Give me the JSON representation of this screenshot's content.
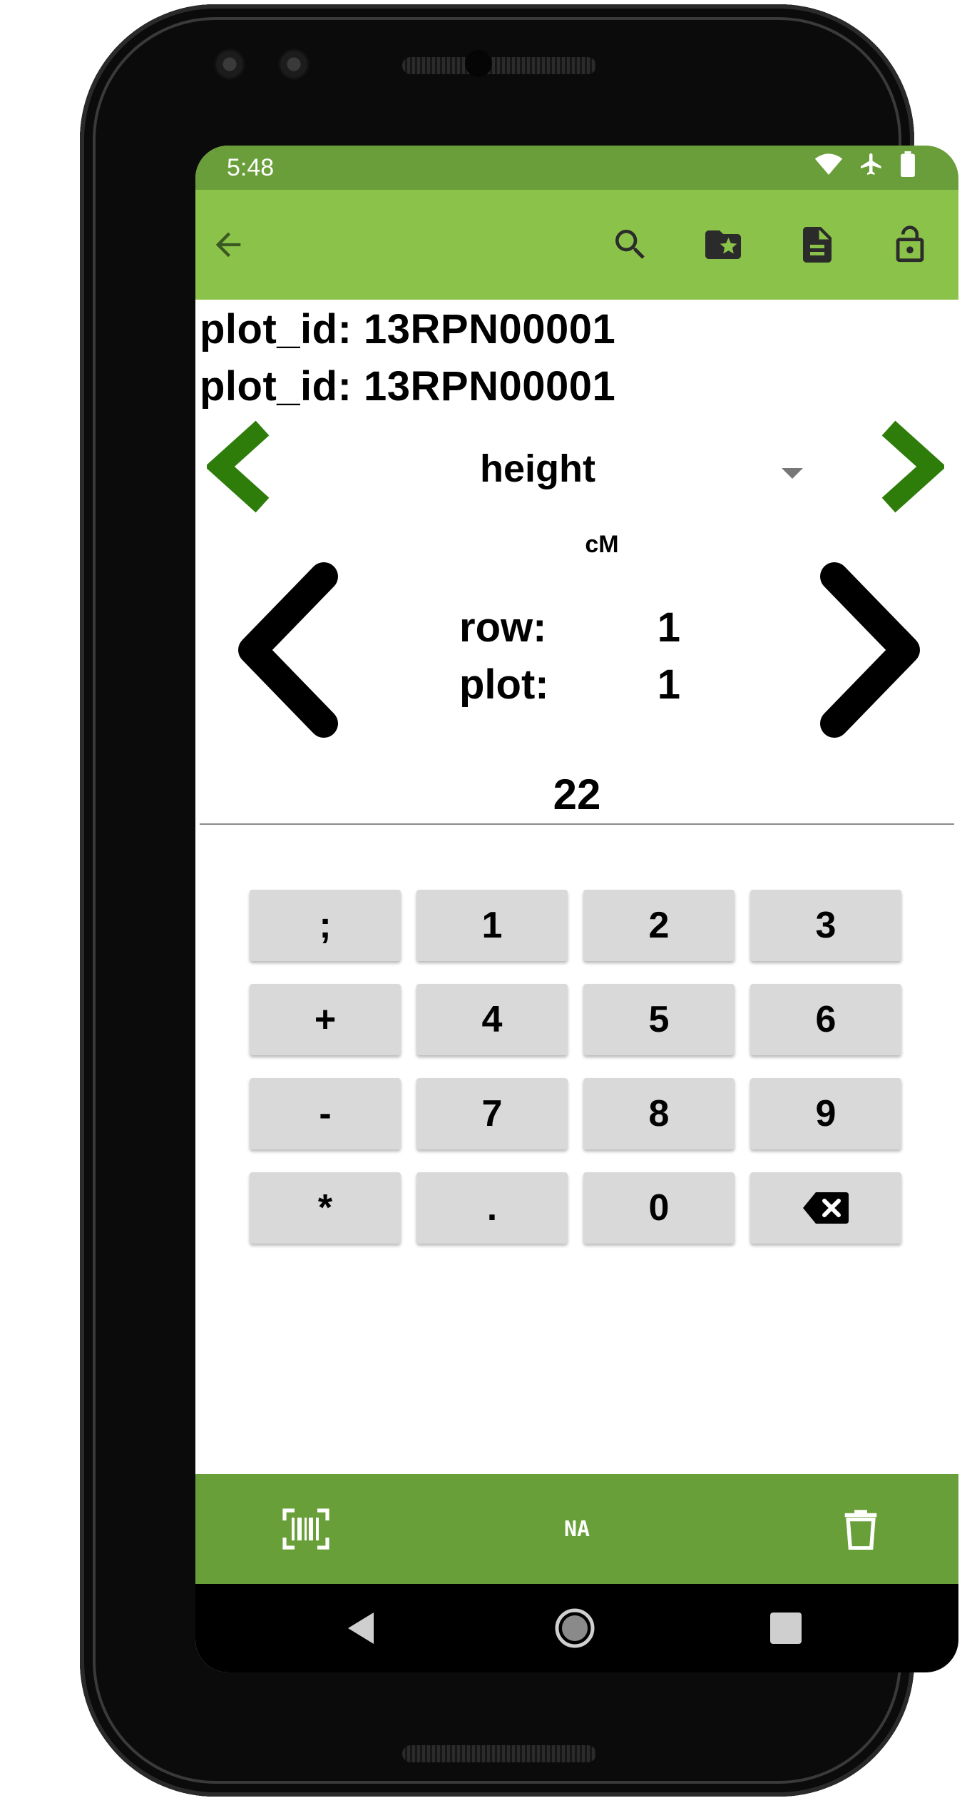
{
  "status_bar": {
    "time": "5:48"
  },
  "toolbar": {
    "icons": [
      "back-arrow-icon",
      "search-icon",
      "favorite-folder-icon",
      "document-icon",
      "unlock-icon"
    ]
  },
  "plot_info": {
    "line1": "plot_id: 13RPN00001",
    "line2": "plot_id: 13RPN00001"
  },
  "trait": {
    "name": "height",
    "unit": "cM"
  },
  "position": {
    "row_label": "row:",
    "row_value": "1",
    "plot_label": "plot:",
    "plot_value": "1"
  },
  "value_input": {
    "value": "22"
  },
  "keypad": {
    "keys": [
      ";",
      "1",
      "2",
      "3",
      "+",
      "4",
      "5",
      "6",
      "-",
      "7",
      "8",
      "9",
      "*",
      ".",
      "0"
    ],
    "backspace_icon": "backspace-icon"
  },
  "bottom_bar": {
    "na_label": "NA",
    "icons": [
      "barcode-scan-icon",
      "delete-icon"
    ]
  },
  "colors": {
    "toolbar": "#8bc34a",
    "status_bar": "#6a9e3a",
    "bottom_bar": "#689f38",
    "trait_arrow": "#2e7d0b"
  }
}
